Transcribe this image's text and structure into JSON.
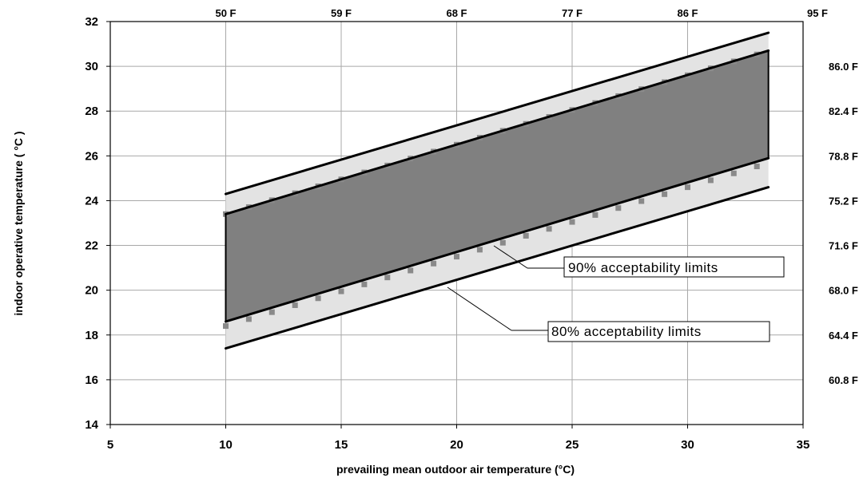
{
  "chart_data": {
    "type": "area",
    "xlabel": "prevailing mean outdoor air temperature (°C)",
    "ylabel": "indoor operative temperature  ( °C )",
    "xlim": [
      5,
      35
    ],
    "ylim": [
      14,
      32
    ],
    "x_ticks": [
      "5",
      "10",
      "15",
      "20",
      "25",
      "30",
      "35"
    ],
    "y_ticks": [
      "14",
      "16",
      "18",
      "20",
      "22",
      "24",
      "26",
      "28",
      "30",
      "32"
    ],
    "top_axis_labels": [
      "50 F",
      "59 F",
      "68 F",
      "77 F",
      "86 F",
      "95 F"
    ],
    "right_axis_labels": [
      "60.8 F",
      "64.4 F",
      "68.0 F",
      "71.6 F",
      "75.2 F",
      "78.8 F",
      "82.4 F",
      "86.0 F"
    ],
    "grid": true,
    "series": [
      {
        "name": "80% acceptability limits",
        "x": [
          10,
          33.5
        ],
        "upper": [
          24.3,
          31.5
        ],
        "lower": [
          17.4,
          24.6
        ]
      },
      {
        "name": "90% acceptability limits",
        "x": [
          10,
          33.5
        ],
        "upper": [
          23.4,
          30.7
        ],
        "lower": [
          18.6,
          25.9
        ]
      }
    ],
    "marker_upper": {
      "x_start": 10,
      "x_end": 33,
      "step": 1,
      "y_start": 23.4,
      "slope": 0.31
    },
    "marker_lower": {
      "x_start": 10,
      "x_end": 33,
      "step": 1,
      "y_start": 18.4,
      "slope": 0.31
    },
    "colors": {
      "band90": "#808080",
      "band80": "#e3e3e3",
      "markers": "#8a8a8a",
      "grid": "#a8a8a8"
    },
    "annotations": [
      {
        "text": "90% acceptability limits",
        "points_to": "90% acceptability limits"
      },
      {
        "text": "80% acceptability limits",
        "points_to": "80% acceptability limits"
      }
    ]
  }
}
